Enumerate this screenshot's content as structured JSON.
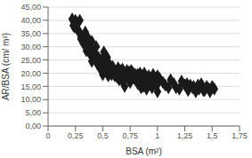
{
  "chart_data": {
    "type": "scatter",
    "xlabel": "BSA (m²)",
    "ylabel": "AR/BSA (cm/ m²)",
    "x": [
      0.22,
      0.23,
      0.24,
      0.25,
      0.26,
      0.27,
      0.28,
      0.29,
      0.3,
      0.31,
      0.32,
      0.33,
      0.34,
      0.35,
      0.36,
      0.37,
      0.38,
      0.39,
      0.4,
      0.41,
      0.42,
      0.43,
      0.44,
      0.45,
      0.46,
      0.47,
      0.48,
      0.49,
      0.5,
      0.51,
      0.52,
      0.53,
      0.54,
      0.55,
      0.56,
      0.57,
      0.58,
      0.59,
      0.6,
      0.61,
      0.62,
      0.63,
      0.64,
      0.65,
      0.66,
      0.67,
      0.68,
      0.69,
      0.7,
      0.71,
      0.72,
      0.73,
      0.74,
      0.75,
      0.76,
      0.77,
      0.78,
      0.79,
      0.8,
      0.81,
      0.82,
      0.83,
      0.84,
      0.85,
      0.86,
      0.87,
      0.88,
      0.89,
      0.9,
      0.91,
      0.92,
      0.93,
      0.94,
      0.95,
      0.96,
      0.97,
      0.98,
      0.99,
      1.0,
      1.01,
      1.02,
      1.05,
      1.07,
      1.1,
      1.12,
      1.15,
      1.17,
      1.2,
      1.22,
      1.25,
      1.27,
      1.28,
      1.3,
      1.32,
      1.33,
      1.35,
      1.37,
      1.38,
      1.4,
      1.42,
      1.43,
      1.45,
      1.47,
      1.48,
      1.5,
      1.52,
      0.25,
      0.26,
      0.27,
      0.3,
      0.32,
      0.35,
      0.38,
      0.4,
      0.43,
      0.45,
      0.48,
      0.5,
      0.52,
      0.55,
      0.57,
      0.6,
      0.62,
      0.65,
      0.67,
      0.7,
      0.72,
      0.75,
      0.77,
      0.8,
      0.82,
      0.85,
      0.87,
      0.9,
      0.95,
      1.0
    ],
    "values": [
      40.5,
      38.0,
      37.5,
      40.0,
      38.5,
      39.0,
      36.0,
      40.0,
      34.0,
      32.5,
      33.0,
      31.0,
      35.5,
      30.0,
      29.0,
      33.0,
      29.5,
      27.0,
      32.0,
      26.0,
      28.0,
      27.0,
      30.0,
      25.5,
      26.0,
      24.5,
      23.5,
      25.0,
      22.0,
      28.0,
      24.5,
      22.0,
      26.0,
      20.5,
      23.5,
      21.0,
      19.5,
      22.5,
      21.0,
      19.0,
      20.5,
      18.5,
      22.0,
      17.5,
      21.0,
      19.5,
      21.5,
      17.5,
      20.0,
      18.5,
      21.0,
      19.5,
      20.5,
      17.5,
      21.0,
      19.0,
      20.0,
      18.0,
      19.5,
      18.0,
      19.5,
      17.0,
      20.0,
      18.5,
      19.0,
      16.5,
      20.0,
      17.0,
      18.5,
      16.0,
      19.0,
      17.0,
      18.0,
      15.5,
      19.5,
      16.0,
      18.0,
      15.5,
      19.0,
      16.5,
      18.0,
      16.5,
      15.5,
      14.5,
      17.5,
      16.0,
      14.5,
      14.0,
      17.0,
      15.5,
      16.0,
      13.5,
      15.5,
      14.5,
      15.0,
      13.0,
      15.5,
      14.0,
      16.0,
      13.5,
      13.5,
      15.0,
      14.0,
      13.0,
      15.0,
      14.0,
      39.0,
      37.0,
      36.5,
      33.0,
      31.5,
      28.5,
      27.5,
      24.5,
      26.5,
      23.5,
      21.5,
      19.5,
      21.0,
      19.0,
      20.5,
      20.0,
      19.5,
      18.0,
      17.5,
      15.0,
      20.5,
      16.5,
      18.0,
      17.5,
      16.0,
      14.5,
      15.0,
      14.0,
      14.5,
      13.0
    ],
    "xlim": [
      0,
      1.75
    ],
    "ylim": [
      0,
      45
    ],
    "xticks": [
      0,
      {
        "value": 0.25,
        "label": "0,25"
      },
      {
        "value": 0.5,
        "label": "0,5"
      },
      {
        "value": 0.75,
        "label": "0,75"
      },
      1,
      {
        "value": 1.25,
        "label": "1,25"
      },
      {
        "value": 1.5,
        "label": "1,5"
      },
      {
        "value": 1.75,
        "label": "1,75"
      }
    ],
    "yticks": [
      {
        "value": 0,
        "label": "0,00"
      },
      {
        "value": 5,
        "label": "5,00"
      },
      {
        "value": 10,
        "label": "10,00"
      },
      {
        "value": 15,
        "label": "15,00"
      },
      {
        "value": 20,
        "label": "20,00"
      },
      {
        "value": 25,
        "label": "25,00"
      },
      {
        "value": 30,
        "label": "30,00"
      },
      {
        "value": 35,
        "label": "35,00"
      },
      {
        "value": 40,
        "label": "40,00"
      },
      {
        "value": 45,
        "label": "45,00"
      }
    ],
    "color": "#1a1a1a",
    "marker": "diamond",
    "grid": "y"
  }
}
